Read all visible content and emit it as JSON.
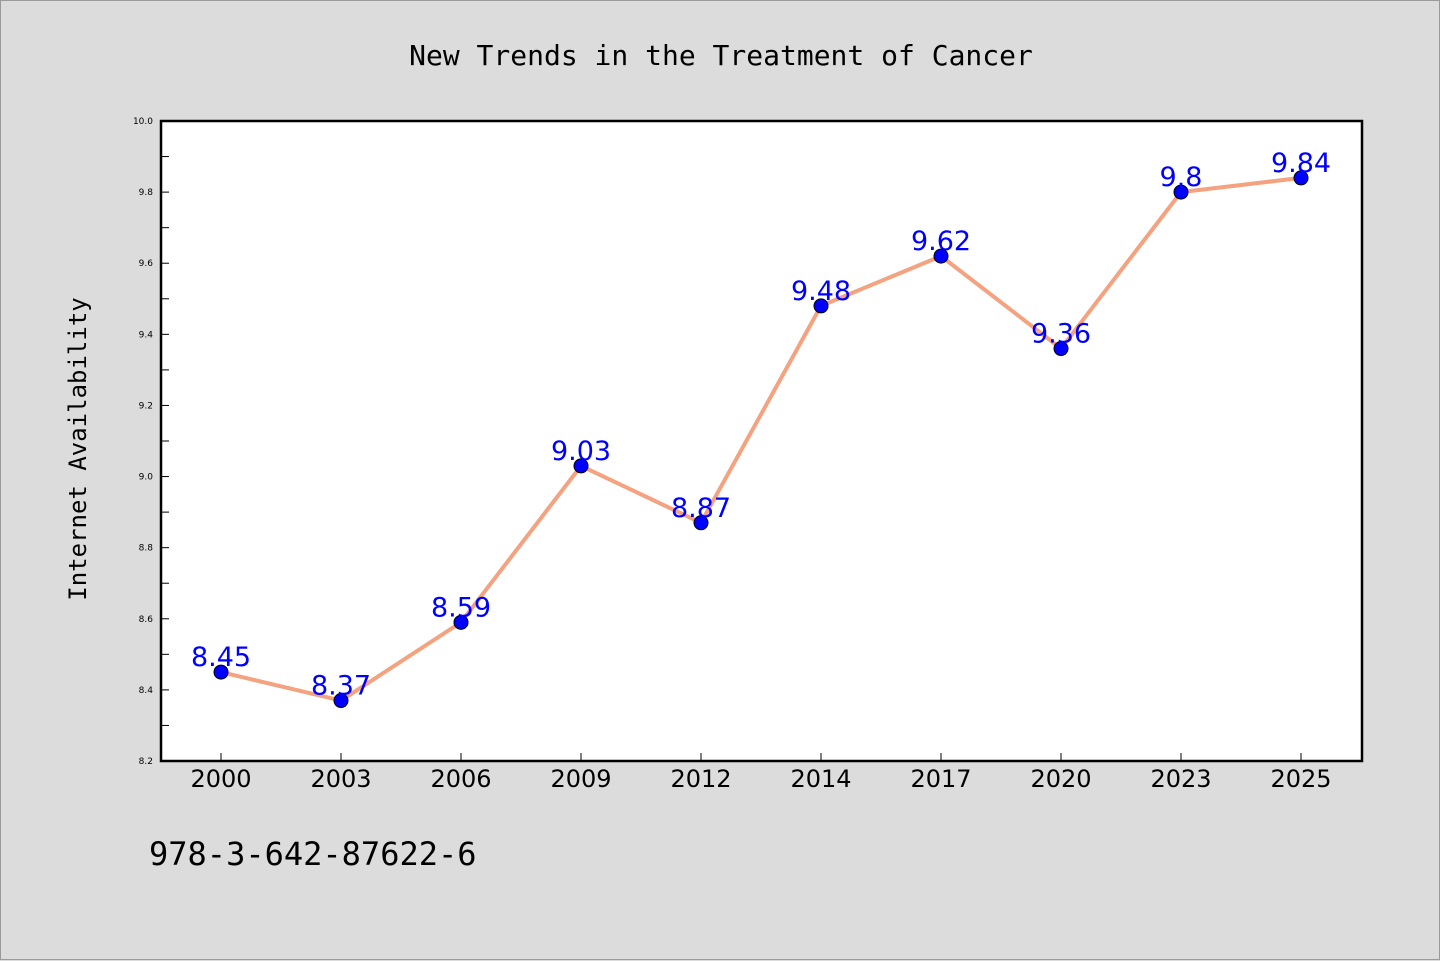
{
  "chart_data": {
    "type": "line",
    "title": "New Trends in the Treatment of Cancer",
    "ylabel": "Internet Availability",
    "xlabel": "",
    "categories": [
      "2000",
      "2003",
      "2006",
      "2009",
      "2012",
      "2014",
      "2017",
      "2020",
      "2023",
      "2025"
    ],
    "values": [
      8.45,
      8.37,
      8.59,
      9.03,
      8.87,
      9.48,
      9.62,
      9.36,
      9.8,
      9.84
    ],
    "data_labels": [
      "8.45",
      "8.37",
      "8.59",
      "9.03",
      "8.87",
      "9.48",
      "9.62",
      "9.36",
      "9.8",
      "9.84"
    ],
    "ylim": [
      8.2,
      10.0
    ],
    "yticks": [
      "8.2",
      "8.4",
      "8.6",
      "8.8",
      "9.0",
      "9.2",
      "9.4",
      "9.6",
      "9.8",
      "10.0"
    ],
    "grid": false,
    "line_color": "#f4a27f",
    "marker_color": "#0000ff",
    "label_color": "#0000ff"
  },
  "footer": {
    "isbn": "978-3-642-87622-6"
  }
}
